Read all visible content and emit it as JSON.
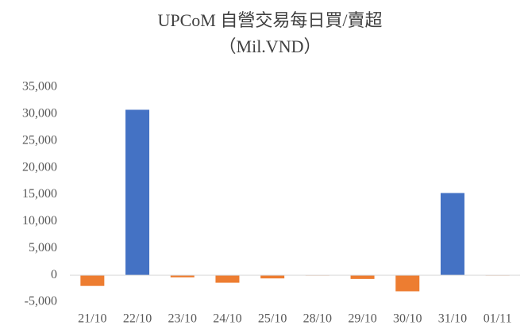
{
  "chart_data": {
    "type": "bar",
    "title": "UPCoM 自營交易每日買/賣超",
    "subtitle": "（Mil.VND）",
    "categories": [
      "21/10",
      "22/10",
      "23/10",
      "24/10",
      "25/10",
      "28/10",
      "29/10",
      "30/10",
      "31/10",
      "01/11"
    ],
    "values": [
      -2000,
      30800,
      -400,
      -1400,
      -600,
      -50,
      -700,
      -3000,
      15300,
      -50
    ],
    "positive_color": "#4472c4",
    "negative_color": "#ed7d31",
    "ylim": [
      -5000,
      35000
    ],
    "yticks": [
      {
        "value": -5000,
        "label": "-5,000"
      },
      0,
      {
        "value": 5000,
        "label": "5,000"
      },
      {
        "value": 10000,
        "label": "10,000"
      },
      {
        "value": 15000,
        "label": "15,000"
      },
      {
        "value": 20000,
        "label": "20,000"
      },
      {
        "value": 25000,
        "label": "25,000"
      },
      {
        "value": 30000,
        "label": "30,000"
      },
      {
        "value": 35000,
        "label": "35,000"
      }
    ],
    "grid": false
  }
}
